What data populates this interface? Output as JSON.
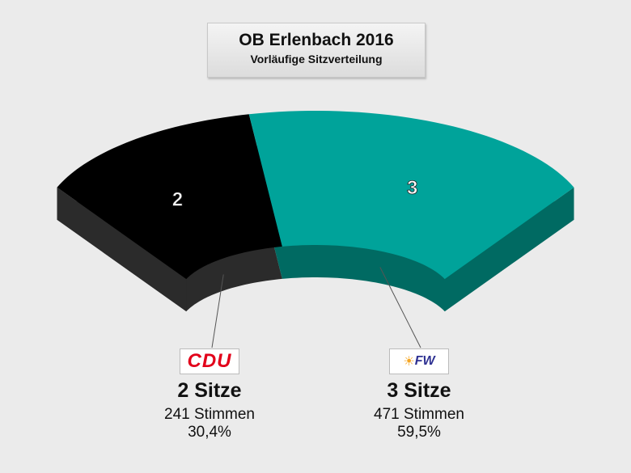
{
  "title": "OB Erlenbach 2016",
  "subtitle": "Vorläufige Sitzverteilung",
  "chart_data": {
    "type": "pie",
    "title": "OB Erlenbach 2016 – Vorläufige Sitzverteilung",
    "categories": [
      "CDU",
      "FW"
    ],
    "values": [
      2,
      3
    ],
    "colors": [
      "#000000",
      "#00a39a"
    ],
    "side_colors": [
      "#2b2b2b",
      "#006a62"
    ],
    "data_labels": [
      "2",
      "3"
    ],
    "parties": [
      {
        "name": "CDU",
        "seats_label": "2 Sitze",
        "votes_label": "241 Stimmen",
        "percent_label": "30,4%",
        "votes": 241,
        "percent": 30.4
      },
      {
        "name": "FW",
        "seats_label": "3 Sitze",
        "votes_label": "471 Stimmen",
        "percent_label": "59,5%",
        "votes": 471,
        "percent": 59.5
      }
    ]
  }
}
